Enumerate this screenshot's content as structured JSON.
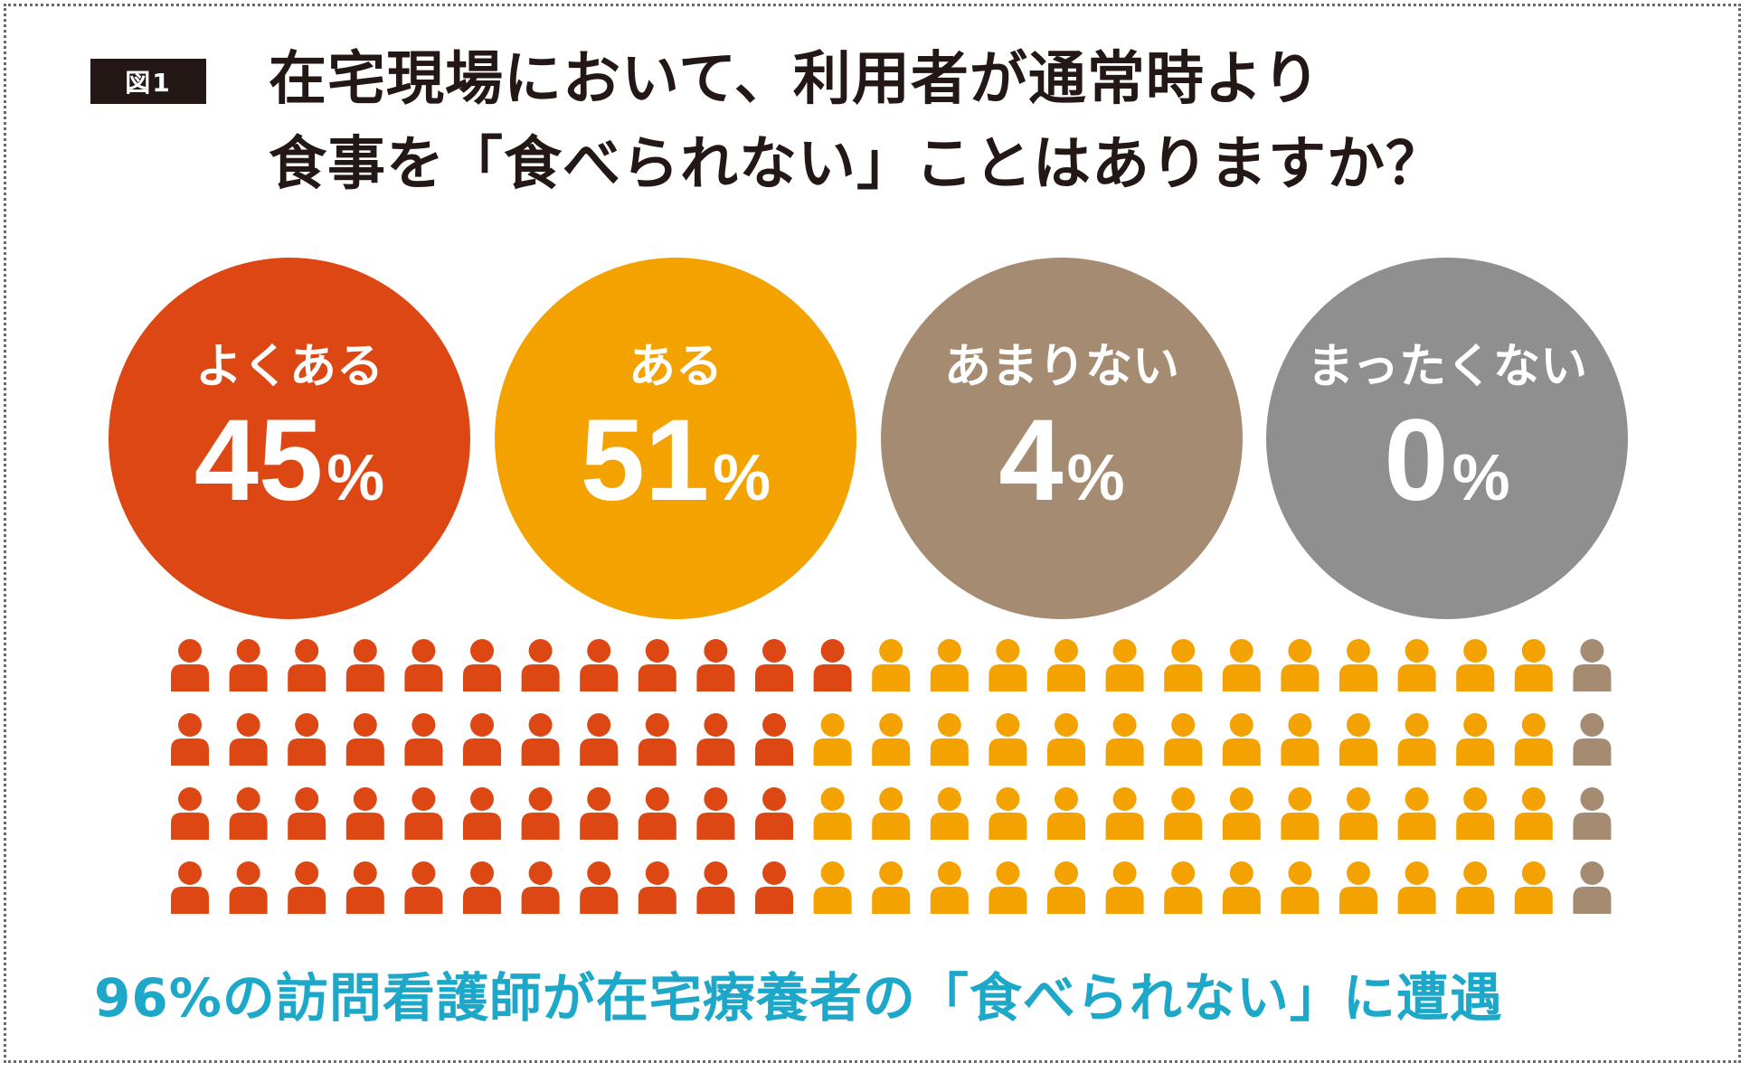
{
  "badge": "図1",
  "title_line1": "在宅現場において、利用者が通常時より",
  "title_line2": "食事を「食べられない」ことはありますか？",
  "chart_data": {
    "type": "pictograph",
    "categories": [
      {
        "label": "よくある",
        "value": 45,
        "color": "#dc4713",
        "icons": 45
      },
      {
        "label": "ある",
        "value": 51,
        "color": "#f3a200",
        "icons": 51
      },
      {
        "label": "あまりない",
        "value": 4,
        "color": "#a58b72",
        "icons": 4
      },
      {
        "label": "まったくない",
        "value": 0,
        "color": "#8f8f8f",
        "icons": 0
      }
    ],
    "percent_sign": "%",
    "grid": {
      "rows": 4,
      "columns": 25
    }
  },
  "footer": "96%の訪問看護師が在宅療養者の「食べられない」に遭遇"
}
